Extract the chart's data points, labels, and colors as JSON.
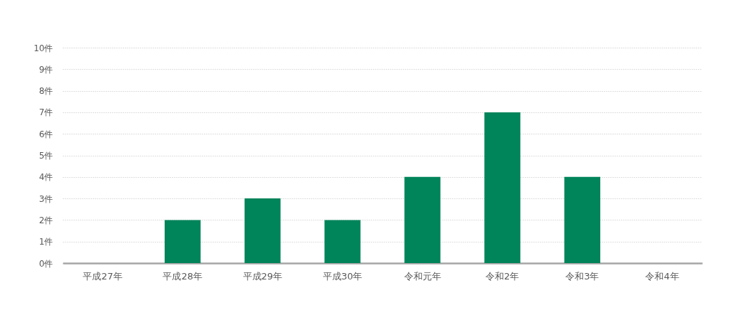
{
  "chart_data": {
    "type": "bar",
    "categories": [
      "平成27年",
      "平成28年",
      "平成29年",
      "平成30年",
      "令和元年",
      "令和2年",
      "令和3年",
      "令和4年"
    ],
    "values": [
      0,
      2,
      3,
      2,
      4,
      7,
      4,
      0
    ],
    "color": "#00845a",
    "ylim": [
      0,
      10
    ],
    "yticks": [
      {
        "value": 0,
        "label": "0件"
      },
      {
        "value": 1,
        "label": "1件"
      },
      {
        "value": 2,
        "label": "2件"
      },
      {
        "value": 3,
        "label": "3件"
      },
      {
        "value": 4,
        "label": "4件"
      },
      {
        "value": 5,
        "label": "5件"
      },
      {
        "value": 6,
        "label": "6件"
      },
      {
        "value": 7,
        "label": "7件"
      },
      {
        "value": 8,
        "label": "8件"
      },
      {
        "value": 9,
        "label": "9件"
      },
      {
        "value": 10,
        "label": "10件"
      }
    ],
    "grid": "y"
  }
}
